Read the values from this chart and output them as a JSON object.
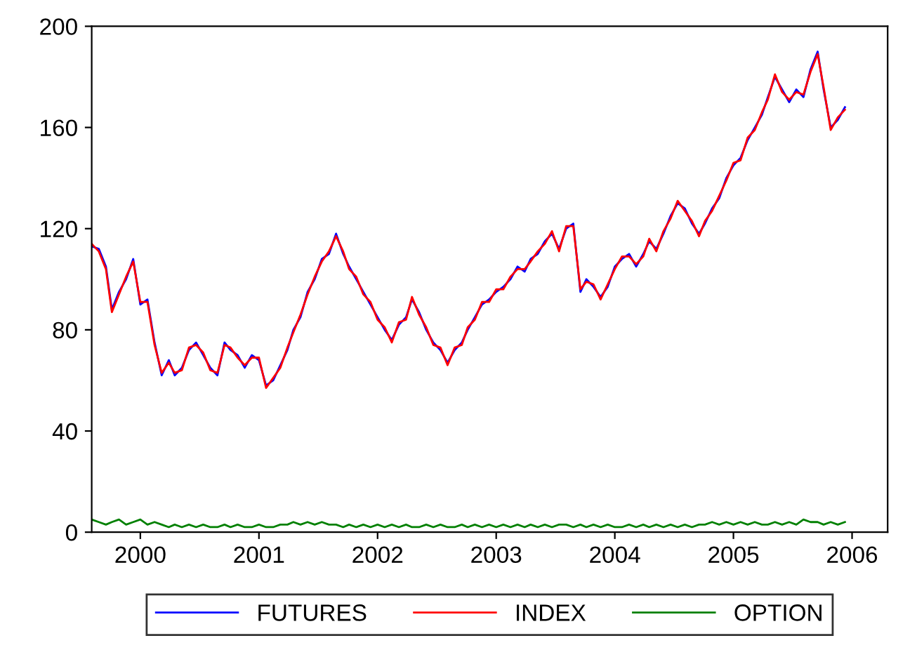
{
  "chart_data": {
    "type": "line",
    "x": [
      1999.59,
      1999.65,
      1999.71,
      1999.76,
      1999.82,
      1999.88,
      1999.94,
      2000.0,
      2000.06,
      2000.12,
      2000.18,
      2000.24,
      2000.29,
      2000.35,
      2000.41,
      2000.47,
      2000.53,
      2000.59,
      2000.65,
      2000.71,
      2000.76,
      2000.82,
      2000.88,
      2000.94,
      2001.0,
      2001.06,
      2001.12,
      2001.18,
      2001.24,
      2001.29,
      2001.35,
      2001.41,
      2001.47,
      2001.53,
      2001.59,
      2001.65,
      2001.71,
      2001.76,
      2001.82,
      2001.88,
      2001.94,
      2002.0,
      2002.06,
      2002.12,
      2002.18,
      2002.24,
      2002.29,
      2002.35,
      2002.41,
      2002.47,
      2002.53,
      2002.59,
      2002.65,
      2002.71,
      2002.76,
      2002.82,
      2002.88,
      2002.94,
      2003.0,
      2003.06,
      2003.12,
      2003.18,
      2003.24,
      2003.29,
      2003.35,
      2003.41,
      2003.47,
      2003.53,
      2003.59,
      2003.65,
      2003.71,
      2003.76,
      2003.82,
      2003.88,
      2003.94,
      2004.0,
      2004.06,
      2004.12,
      2004.18,
      2004.24,
      2004.29,
      2004.35,
      2004.41,
      2004.47,
      2004.53,
      2004.59,
      2004.65,
      2004.71,
      2004.76,
      2004.82,
      2004.88,
      2004.94,
      2005.0,
      2005.06,
      2005.12,
      2005.18,
      2005.24,
      2005.29,
      2005.35,
      2005.41,
      2005.47,
      2005.53,
      2005.59,
      2005.65,
      2005.71,
      2005.76,
      2005.82,
      2005.88,
      2005.94
    ],
    "series": [
      {
        "name": "FUTURES",
        "color": "#0000ff",
        "values": [
          113,
          112,
          105,
          88,
          95,
          100,
          108,
          90,
          92,
          75,
          62,
          68,
          62,
          65,
          72,
          75,
          70,
          65,
          62,
          75,
          72,
          70,
          65,
          70,
          68,
          58,
          60,
          66,
          72,
          80,
          85,
          95,
          100,
          108,
          110,
          118,
          110,
          105,
          100,
          95,
          90,
          85,
          80,
          76,
          82,
          85,
          92,
          87,
          80,
          75,
          72,
          67,
          72,
          75,
          80,
          85,
          90,
          92,
          95,
          97,
          100,
          105,
          103,
          108,
          110,
          115,
          118,
          112,
          120,
          122,
          95,
          100,
          97,
          93,
          97,
          105,
          108,
          110,
          105,
          110,
          115,
          112,
          118,
          125,
          130,
          128,
          122,
          118,
          122,
          128,
          132,
          140,
          145,
          148,
          155,
          160,
          165,
          172,
          180,
          175,
          170,
          175,
          172,
          183,
          190,
          175,
          160,
          163,
          168
        ]
      },
      {
        "name": "INDEX",
        "color": "#ff0000",
        "values": [
          114,
          111,
          104,
          87,
          94,
          101,
          107,
          91,
          91,
          74,
          63,
          67,
          63,
          64,
          73,
          74,
          71,
          64,
          63,
          74,
          73,
          69,
          66,
          69,
          69,
          57,
          61,
          65,
          73,
          79,
          86,
          94,
          101,
          107,
          111,
          117,
          111,
          104,
          101,
          94,
          91,
          84,
          81,
          75,
          83,
          84,
          93,
          86,
          81,
          74,
          73,
          66,
          73,
          74,
          81,
          84,
          91,
          91,
          96,
          96,
          101,
          104,
          104,
          107,
          111,
          114,
          119,
          111,
          121,
          121,
          96,
          99,
          98,
          92,
          98,
          104,
          109,
          109,
          106,
          109,
          116,
          111,
          119,
          124,
          131,
          127,
          123,
          117,
          123,
          127,
          133,
          139,
          146,
          147,
          156,
          159,
          166,
          171,
          181,
          174,
          171,
          174,
          173,
          182,
          189,
          176,
          159,
          164,
          167
        ]
      },
      {
        "name": "OPTION",
        "color": "#008000",
        "values": [
          5,
          4,
          3,
          4,
          5,
          3,
          4,
          5,
          3,
          4,
          3,
          2,
          3,
          2,
          3,
          2,
          3,
          2,
          2,
          3,
          2,
          3,
          2,
          2,
          3,
          2,
          2,
          3,
          3,
          4,
          3,
          4,
          3,
          4,
          3,
          3,
          2,
          3,
          2,
          3,
          2,
          3,
          2,
          3,
          2,
          3,
          2,
          2,
          3,
          2,
          3,
          2,
          2,
          3,
          2,
          3,
          2,
          3,
          2,
          3,
          2,
          3,
          2,
          3,
          2,
          3,
          2,
          3,
          3,
          2,
          3,
          2,
          3,
          2,
          3,
          2,
          2,
          3,
          2,
          3,
          2,
          3,
          2,
          3,
          2,
          3,
          2,
          3,
          3,
          4,
          3,
          4,
          3,
          4,
          3,
          4,
          3,
          3,
          4,
          3,
          4,
          3,
          5,
          4,
          4,
          3,
          4,
          3,
          4
        ]
      }
    ],
    "xlim": [
      1999.59,
      2006.3
    ],
    "xticks": [
      2000,
      2001,
      2002,
      2003,
      2004,
      2005,
      2006
    ],
    "ylim": [
      0,
      200
    ],
    "yticks": [
      0,
      40,
      80,
      120,
      160,
      200
    ],
    "legend": "bottom",
    "grid": false,
    "line_style": "solid",
    "marker": "none"
  }
}
